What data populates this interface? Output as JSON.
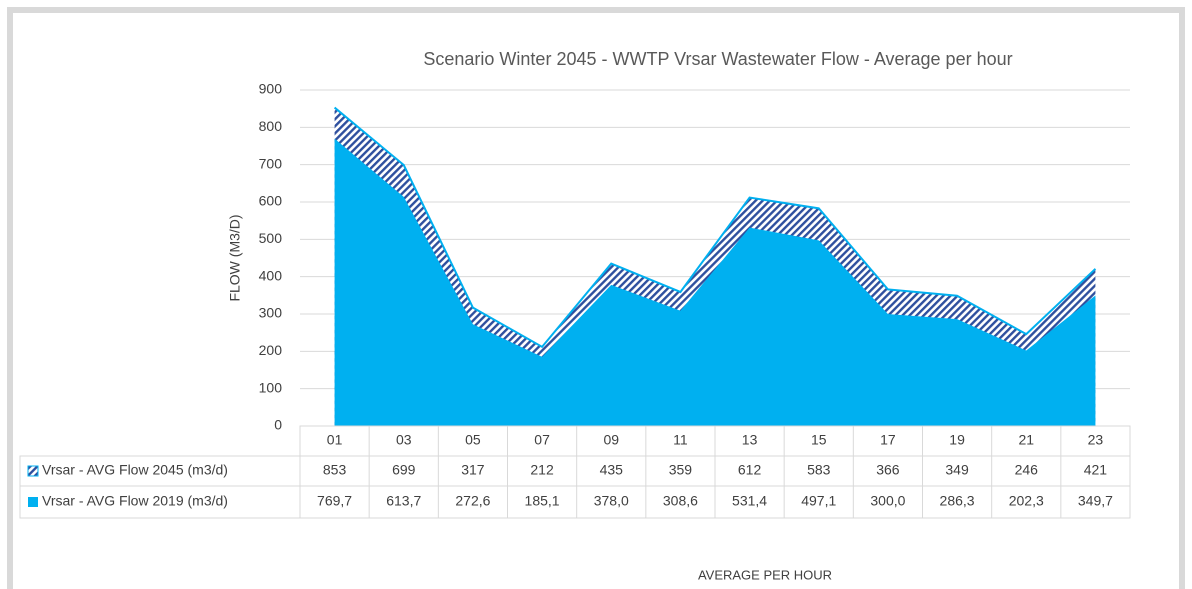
{
  "chart_data": {
    "type": "area",
    "title": "Scenario Winter 2045 - WWTP Vrsar Wastewater Flow - Average per hour",
    "y_label": "FLOW (M3/D)",
    "x_label": "AVERAGE PER HOUR",
    "categories": [
      "01",
      "03",
      "05",
      "07",
      "09",
      "11",
      "13",
      "15",
      "17",
      "19",
      "21",
      "23"
    ],
    "series": [
      {
        "name": "Vrsar - AVG Flow 2045 (m3/d)",
        "color": "#2e4f9e",
        "pattern": "hatch",
        "values": [
          853,
          699,
          317,
          212,
          435,
          359,
          612,
          583,
          366,
          349,
          246,
          421
        ]
      },
      {
        "name": "Vrsar - AVG Flow 2019 (m3/d)",
        "color": "#00b0f0",
        "values": [
          769.7,
          613.7,
          272.6,
          185.1,
          378.0,
          308.6,
          531.4,
          497.1,
          300.0,
          286.3,
          202.3,
          349.7
        ],
        "value_labels": [
          "769,7",
          "613,7",
          "272,6",
          "185,1",
          "378,0",
          "308,6",
          "531,4",
          "497,1",
          "300,0",
          "286,3",
          "202,3",
          "349,7"
        ]
      }
    ],
    "ylim": [
      0,
      900
    ],
    "yticks": [
      0,
      100,
      200,
      300,
      400,
      500,
      600,
      700,
      800,
      900
    ],
    "grid": true
  }
}
